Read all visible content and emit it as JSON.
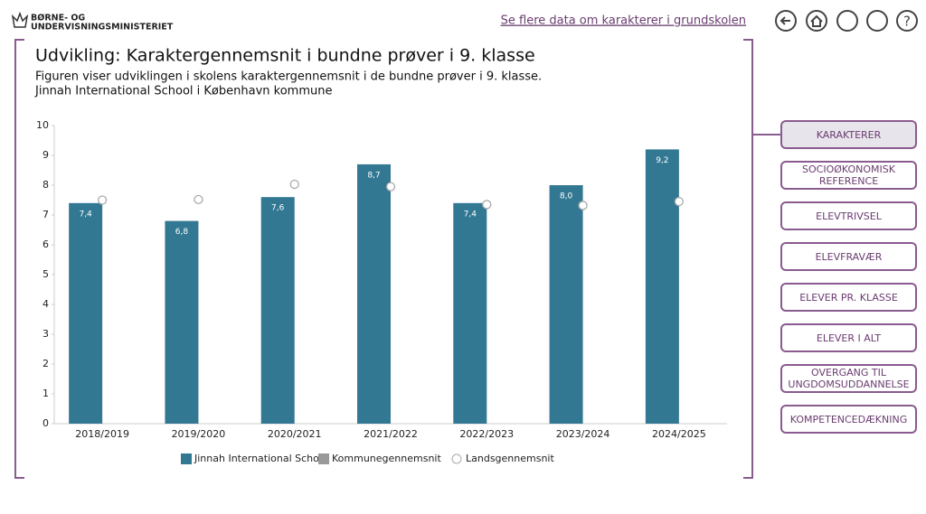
{
  "header": {
    "logo_lines": [
      "BØRNE- OG",
      "UNDERVISNINGSMINISTERIET"
    ],
    "link": "Se flere data om karakterer i grundskolen"
  },
  "chart_data": {
    "type": "bar",
    "title": "Udvikling: Karaktergennemsnit i bundne prøver i 9. klasse",
    "subtitle": [
      "Figuren viser udviklingen i skolens karaktergennemsnit i de bundne prøver i 9. klasse.",
      "Jinnah International School i København kommune"
    ],
    "categories": [
      "2018/2019",
      "2019/2020",
      "2020/2021",
      "2021/2022",
      "2022/2023",
      "2023/2024",
      "2024/2025"
    ],
    "series": [
      {
        "name": "Jinnah International School",
        "color": "#337893",
        "values": [
          7.4,
          6.8,
          7.6,
          8.7,
          7.4,
          8.0,
          9.2
        ],
        "value_labels": [
          "7,4",
          "6,8",
          "7,6",
          "8,7",
          "7,4",
          "8,0",
          "9,2"
        ]
      },
      {
        "name": "Kommunegennemsnit",
        "color": "#999999",
        "values": [
          null,
          null,
          null,
          null,
          null,
          null,
          null
        ]
      },
      {
        "name": "Landsgennemsnit",
        "color": "#aaaaaa",
        "marker": "circle",
        "values": [
          7.5,
          7.52,
          8.03,
          7.95,
          7.35,
          7.32,
          7.45
        ]
      }
    ],
    "ylim": [
      0,
      10
    ],
    "yticks": [
      0,
      1,
      2,
      3,
      4,
      5,
      6,
      7,
      8,
      9,
      10
    ],
    "legend": "bottom"
  },
  "nav": [
    "KARAKTERER",
    "SOCIOØKONOMISK REFERENCE",
    "ELEVTRIVSEL",
    "ELEVFRAVÆR",
    "ELEVER PR. KLASSE",
    "ELEVER I ALT",
    "OVERGANG TIL UNGDOMSUDDANNELSE",
    "KOMPETENCEDÆKNING"
  ]
}
